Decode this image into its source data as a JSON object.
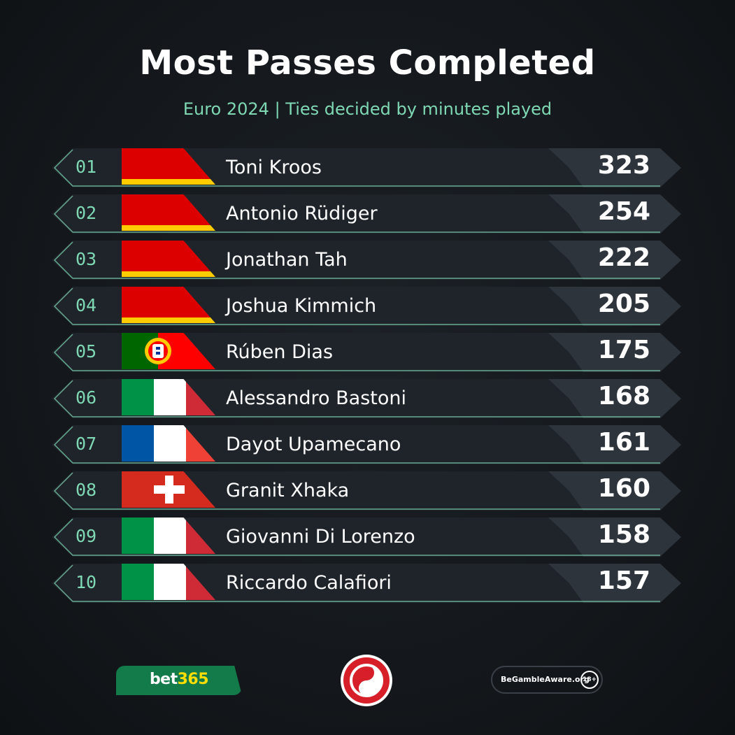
{
  "title": "Most Passes Completed",
  "subtitle": "Euro 2024 | Ties decided by minutes played",
  "colors": {
    "accent": "#7fd8b4",
    "row_bg": "#23282e",
    "score_bg": "#2e343b",
    "bet365_green": "#137a4a",
    "bet365_yellow": "#ffdd00"
  },
  "players": [
    {
      "rank": "01",
      "name": "Toni Kroos",
      "value": "323",
      "flag": "germany"
    },
    {
      "rank": "02",
      "name": "Antonio Rüdiger",
      "value": "254",
      "flag": "germany"
    },
    {
      "rank": "03",
      "name": "Jonathan Tah",
      "value": "222",
      "flag": "germany"
    },
    {
      "rank": "04",
      "name": "Joshua Kimmich",
      "value": "205",
      "flag": "germany"
    },
    {
      "rank": "05",
      "name": "Rúben Dias",
      "value": "175",
      "flag": "portugal"
    },
    {
      "rank": "06",
      "name": "Alessandro Bastoni",
      "value": "168",
      "flag": "italy"
    },
    {
      "rank": "07",
      "name": "Dayot Upamecano",
      "value": "161",
      "flag": "france"
    },
    {
      "rank": "08",
      "name": "Granit Xhaka",
      "value": "160",
      "flag": "switzerland"
    },
    {
      "rank": "09",
      "name": "Giovanni Di Lorenzo",
      "value": "158",
      "flag": "italy"
    },
    {
      "rank": "10",
      "name": "Riccardo Calafiori",
      "value": "157",
      "flag": "italy"
    }
  ],
  "footer": {
    "bet365_main": "bet",
    "bet365_num": "365",
    "aware_text": "BeGambleAware.org",
    "age": "18+"
  }
}
